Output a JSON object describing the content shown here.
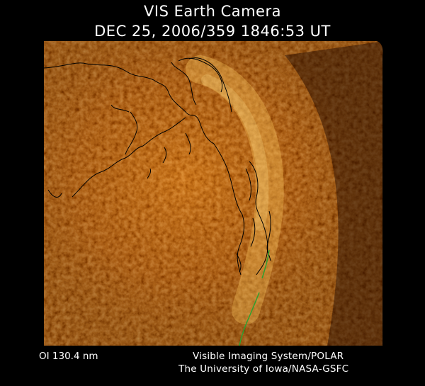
{
  "header": {
    "title": "VIS Earth Camera",
    "timestamp": "DEC 25, 2006/359 1846:53 UT"
  },
  "footer": {
    "wavelength": "OI  130.4 nm",
    "instrument": "Visible Imaging System/POLAR",
    "institution": "The University of Iowa/NASA-GSFC"
  },
  "image": {
    "subject": "aurora-over-earth",
    "colormap": [
      "#000000",
      "#3a0a00",
      "#7a2600",
      "#b84e08",
      "#e08a20",
      "#ffd270"
    ],
    "coastline_color": "#000000",
    "overlay_line_color": "#2fa02f"
  }
}
